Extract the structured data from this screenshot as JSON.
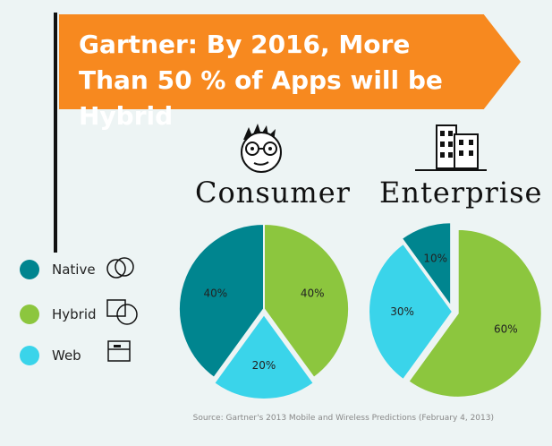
{
  "title": "Gartner: By 2016, More Than 50 % of Apps will be Hybrid",
  "source": "Source: Gartner's 2013 Mobile and Wireless Predictions (February 4, 2013)",
  "legend": [
    {
      "label": "Native",
      "color": "#00858f",
      "icon": "overlapping-circles-icon"
    },
    {
      "label": "Hybrid",
      "color": "#8cc63e",
      "icon": "square-circle-icon"
    },
    {
      "label": "Web",
      "color": "#3ad4ea",
      "icon": "browser-window-icon"
    }
  ],
  "chart_data": [
    {
      "type": "pie",
      "title": "Consumer",
      "categories": [
        "Hybrid",
        "Web",
        "Native"
      ],
      "values": [
        40,
        20,
        40
      ],
      "labels": [
        "40%",
        "20%",
        "40%"
      ],
      "colors": [
        "#8cc63e",
        "#3ad4ea",
        "#00858f"
      ]
    },
    {
      "type": "pie",
      "title": "Enterprise",
      "categories": [
        "Hybrid",
        "Web",
        "Native"
      ],
      "values": [
        60,
        30,
        10
      ],
      "labels": [
        "60%",
        "30%",
        "10%"
      ],
      "colors": [
        "#8cc63e",
        "#3ad4ea",
        "#00858f"
      ]
    }
  ]
}
